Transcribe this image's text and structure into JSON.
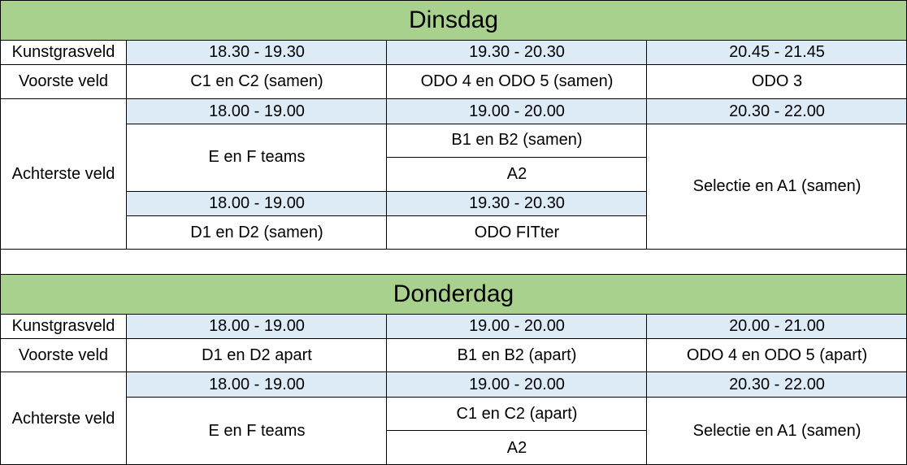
{
  "dinsdag": {
    "title": "Dinsdag",
    "kunstgras_label": "Kunstgrasveld",
    "kunstgras_times": [
      "18.30 - 19.30",
      "19.30 - 20.30",
      "20.45 - 21.45"
    ],
    "voorste_label": "Voorste veld",
    "voorste_groups": [
      "C1 en C2 (samen)",
      "ODO 4 en ODO 5 (samen)",
      "ODO 3"
    ],
    "achterste_label": "Achterste veld",
    "achterste_times_1": [
      "18.00 - 19.00",
      "19.00 - 20.00",
      "20.30 - 22.00"
    ],
    "ef_teams": "E en F teams",
    "b1b2": "B1 en B2 (samen)",
    "a2": "A2",
    "selectie": "Selectie en A1 (samen)",
    "achterste_times_2": [
      "18.00 - 19.00",
      "19.30 - 20.30"
    ],
    "d1d2": "D1 en D2 (samen)",
    "odo_fitter": "ODO FITter"
  },
  "donderdag": {
    "title": "Donderdag",
    "kunstgras_label": "Kunstgrasveld",
    "kunstgras_times": [
      "18.00 - 19.00",
      "19.00 - 20.00",
      "20.00 - 21.00"
    ],
    "voorste_label": "Voorste veld",
    "voorste_groups": [
      "D1 en D2 apart",
      "B1 en B2 (apart)",
      "ODO 4 en ODO 5 (apart)"
    ],
    "achterste_label": "Achterste veld",
    "achterste_times": [
      "18.00 - 19.00",
      "19.00 - 20.00",
      "20.30 - 22.00"
    ],
    "ef_teams": "E en F teams",
    "c1c2": "C1 en C2 (apart)",
    "a2": "A2",
    "selectie": "Selectie en A1 (samen)"
  }
}
